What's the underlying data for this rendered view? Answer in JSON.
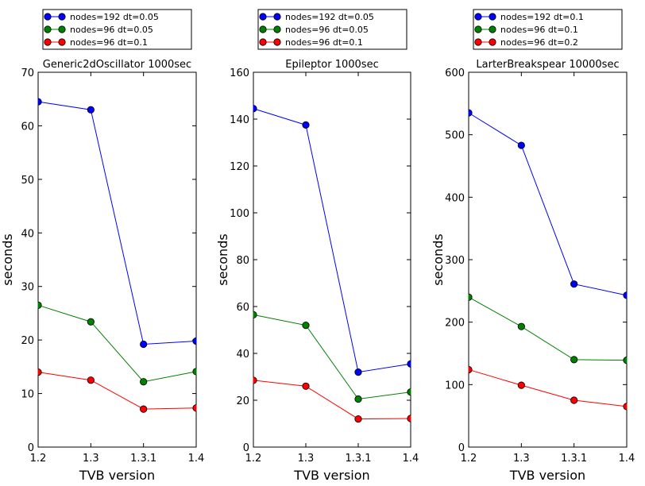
{
  "chart_data": [
    {
      "type": "line",
      "title": "Generic2dOscillator 1000sec",
      "xlabel": "TVB version",
      "ylabel": "seconds",
      "categories": [
        "1.2",
        "1.3",
        "1.3.1",
        "1.4"
      ],
      "ylim": [
        0,
        70
      ],
      "yticks": [
        "0",
        "10",
        "20",
        "30",
        "40",
        "50",
        "60",
        "70"
      ],
      "legend_position": "top",
      "grid": false,
      "series": [
        {
          "name": "nodes=192 dt=0.05",
          "color": "#0000ff",
          "values": [
            64.5,
            63.0,
            19.2,
            19.8
          ]
        },
        {
          "name": "nodes=96 dt=0.05",
          "color": "#008000",
          "values": [
            26.5,
            23.4,
            12.2,
            14.1
          ]
        },
        {
          "name": "nodes=96 dt=0.1",
          "color": "#ff0000",
          "values": [
            14.0,
            12.5,
            7.1,
            7.3
          ]
        }
      ]
    },
    {
      "type": "line",
      "title": "Epileptor 1000sec",
      "xlabel": "TVB version",
      "ylabel": "seconds",
      "categories": [
        "1.2",
        "1.3",
        "1.3.1",
        "1.4"
      ],
      "ylim": [
        0,
        160
      ],
      "yticks": [
        "0",
        "20",
        "40",
        "60",
        "80",
        "100",
        "120",
        "140",
        "160"
      ],
      "legend_position": "top",
      "grid": false,
      "series": [
        {
          "name": "nodes=192 dt=0.05",
          "color": "#0000ff",
          "values": [
            144.5,
            137.5,
            32.0,
            35.5
          ]
        },
        {
          "name": "nodes=96 dt=0.05",
          "color": "#008000",
          "values": [
            56.5,
            52.0,
            20.5,
            23.5
          ]
        },
        {
          "name": "nodes=96 dt=0.1",
          "color": "#ff0000",
          "values": [
            28.5,
            26.0,
            12.0,
            12.2
          ]
        }
      ]
    },
    {
      "type": "line",
      "title": "LarterBreakspear 10000sec",
      "xlabel": "TVB version",
      "ylabel": "seconds",
      "categories": [
        "1.2",
        "1.3",
        "1.3.1",
        "1.4"
      ],
      "ylim": [
        0,
        600
      ],
      "yticks": [
        "0",
        "100",
        "200",
        "300",
        "400",
        "500",
        "600"
      ],
      "legend_position": "top",
      "grid": false,
      "series": [
        {
          "name": "nodes=192 dt=0.1",
          "color": "#0000ff",
          "values": [
            535,
            483,
            261,
            243
          ]
        },
        {
          "name": "nodes=96 dt=0.1",
          "color": "#008000",
          "values": [
            240,
            193,
            140,
            139
          ]
        },
        {
          "name": "nodes=96 dt=0.2",
          "color": "#ff0000",
          "values": [
            124,
            99,
            75,
            65
          ]
        }
      ]
    }
  ]
}
